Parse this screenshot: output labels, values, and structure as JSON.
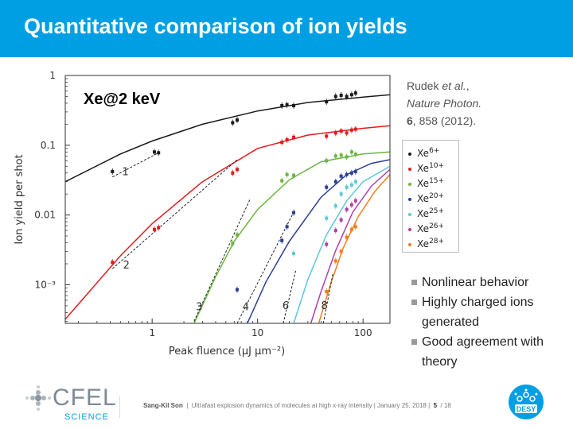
{
  "slide": {
    "title": "Quantitative comparison of ion yields"
  },
  "reference": {
    "line1_author": "Rudek ",
    "line1_etal": "et al.",
    "line1_end": ",",
    "line2": "Nature Photon.",
    "line3_volume": "6",
    "line3_rest": ", 858 (2012)."
  },
  "bullets": [
    "Nonlinear behavior",
    "Highly charged ions generated",
    "Good agreement with theory"
  ],
  "footer": {
    "author": "Sang-Kil Son",
    "talk": "Ultrafast explosion dynamics of molecules at high x-ray intensity",
    "date": "January 25, 2018",
    "page": "5",
    "total": "/ 18"
  },
  "logos": {
    "cfel": "CFEL",
    "cfel_sub": "SCIENCE",
    "desy": "DESY"
  },
  "chart_data": {
    "type": "scatter",
    "title": "",
    "panel_label": "Xe@2 keV",
    "xlabel": "Peak fluence (μJ μm⁻²)",
    "ylabel": "Ion yield per shot",
    "xscale": "log",
    "yscale": "log",
    "xlim": [
      0.15,
      180
    ],
    "ylim": [
      0.00028,
      1
    ],
    "x_ticks": [
      {
        "value": 1,
        "label": "1"
      },
      {
        "value": 10,
        "label": "10"
      },
      {
        "value": 100,
        "label": "100"
      }
    ],
    "y_ticks": [
      {
        "value": 1,
        "label": "1"
      },
      {
        "value": 0.1,
        "label": "0.1"
      },
      {
        "value": 0.01,
        "label": "0.01"
      },
      {
        "value": 0.001,
        "label": "10⁻³"
      }
    ],
    "grid": false,
    "legend_position": "right, outside plot",
    "series": [
      {
        "name": "Xe6+",
        "charge": "6+",
        "color": "#1a1a1a",
        "points": [
          [
            0.42,
            0.042
          ],
          [
            1.05,
            0.08
          ],
          [
            1.15,
            0.078
          ],
          [
            5.8,
            0.21
          ],
          [
            6.4,
            0.23
          ],
          [
            17,
            0.37
          ],
          [
            19,
            0.38
          ],
          [
            22,
            0.37
          ],
          [
            45,
            0.42
          ],
          [
            55,
            0.5
          ],
          [
            62,
            0.52
          ],
          [
            70,
            0.5
          ],
          [
            78,
            0.53
          ],
          [
            85,
            0.56
          ]
        ],
        "theory": [
          [
            0.15,
            0.03
          ],
          [
            0.5,
            0.075
          ],
          [
            1,
            0.115
          ],
          [
            3,
            0.2
          ],
          [
            10,
            0.31
          ],
          [
            30,
            0.41
          ],
          [
            100,
            0.49
          ],
          [
            180,
            0.53
          ]
        ]
      },
      {
        "name": "Xe10+",
        "charge": "10+",
        "color": "#e31a1c",
        "points": [
          [
            0.42,
            0.0021
          ],
          [
            1.05,
            0.0062
          ],
          [
            1.15,
            0.0066
          ],
          [
            5.8,
            0.04
          ],
          [
            6.4,
            0.045
          ],
          [
            17,
            0.11
          ],
          [
            19,
            0.12
          ],
          [
            22,
            0.13
          ],
          [
            45,
            0.135
          ],
          [
            55,
            0.15
          ],
          [
            62,
            0.16
          ],
          [
            70,
            0.15
          ],
          [
            78,
            0.165
          ],
          [
            85,
            0.17
          ]
        ],
        "theory": [
          [
            0.15,
            0.00032
          ],
          [
            0.5,
            0.0026
          ],
          [
            1,
            0.0075
          ],
          [
            3,
            0.03
          ],
          [
            10,
            0.09
          ],
          [
            30,
            0.14
          ],
          [
            100,
            0.175
          ],
          [
            180,
            0.19
          ]
        ]
      },
      {
        "name": "Xe15+",
        "charge": "15+",
        "color": "#6ab63f",
        "points": [
          [
            5.8,
            0.0039
          ],
          [
            6.4,
            0.0052
          ],
          [
            17,
            0.031
          ],
          [
            19,
            0.038
          ],
          [
            22,
            0.037
          ],
          [
            45,
            0.06
          ],
          [
            55,
            0.07
          ],
          [
            62,
            0.072
          ],
          [
            70,
            0.068
          ],
          [
            78,
            0.08
          ],
          [
            85,
            0.074
          ]
        ],
        "theory": [
          [
            2.5,
            0.00028
          ],
          [
            4,
            0.0013
          ],
          [
            6,
            0.0042
          ],
          [
            10,
            0.012
          ],
          [
            20,
            0.032
          ],
          [
            40,
            0.058
          ],
          [
            100,
            0.075
          ],
          [
            180,
            0.08
          ]
        ]
      },
      {
        "name": "Xe20+",
        "charge": "20+",
        "color": "#2c3e94",
        "points": [
          [
            6.4,
            0.00085
          ],
          [
            17,
            0.0043
          ],
          [
            19,
            0.0068
          ],
          [
            22,
            0.0108
          ],
          [
            45,
            0.025
          ],
          [
            55,
            0.03
          ],
          [
            62,
            0.036
          ],
          [
            70,
            0.038
          ],
          [
            78,
            0.04
          ],
          [
            85,
            0.042
          ]
        ],
        "theory": [
          [
            8,
            0.00028
          ],
          [
            12,
            0.0011
          ],
          [
            20,
            0.0042
          ],
          [
            40,
            0.018
          ],
          [
            70,
            0.038
          ],
          [
            120,
            0.055
          ],
          [
            180,
            0.062
          ]
        ]
      },
      {
        "name": "Xe25+",
        "charge": "25+",
        "color": "#5bc8dc",
        "points": [
          [
            22,
            0.0028
          ],
          [
            45,
            0.009
          ],
          [
            55,
            0.0135
          ],
          [
            62,
            0.02
          ],
          [
            70,
            0.025
          ],
          [
            78,
            0.027
          ],
          [
            85,
            0.03
          ]
        ],
        "theory": [
          [
            22,
            0.00028
          ],
          [
            30,
            0.0012
          ],
          [
            45,
            0.0052
          ],
          [
            70,
            0.016
          ],
          [
            100,
            0.03
          ],
          [
            180,
            0.05
          ]
        ]
      },
      {
        "name": "Xe26+",
        "charge": "26+",
        "color": "#b23fa8",
        "points": [
          [
            45,
            0.0038
          ],
          [
            55,
            0.006
          ],
          [
            62,
            0.0085
          ],
          [
            70,
            0.012
          ],
          [
            78,
            0.014
          ],
          [
            85,
            0.016
          ]
        ],
        "theory": [
          [
            32,
            0.00028
          ],
          [
            40,
            0.0008
          ],
          [
            55,
            0.0031
          ],
          [
            80,
            0.011
          ],
          [
            120,
            0.026
          ],
          [
            180,
            0.045
          ]
        ]
      },
      {
        "name": "Xe28+",
        "charge": "28+",
        "color": "#f07d1e",
        "points": [
          [
            45,
            0.0008
          ],
          [
            55,
            0.0022
          ],
          [
            62,
            0.003
          ],
          [
            70,
            0.0048
          ],
          [
            78,
            0.0062
          ],
          [
            85,
            0.0068
          ]
        ],
        "theory": [
          [
            38,
            0.00028
          ],
          [
            50,
            0.0011
          ],
          [
            65,
            0.0034
          ],
          [
            90,
            0.0095
          ],
          [
            130,
            0.022
          ],
          [
            180,
            0.038
          ]
        ]
      }
    ],
    "slope_guides": [
      {
        "label": "1",
        "from": [
          0.42,
          0.035
        ],
        "to": [
          1.15,
          0.078
        ],
        "label_at": [
          0.52,
          0.037
        ]
      },
      {
        "label": "2",
        "from": [
          0.42,
          0.0017
        ],
        "to": [
          6.4,
          0.062
        ],
        "label_at": [
          0.53,
          0.0017
        ]
      },
      {
        "label": "3",
        "from": [
          2.5,
          0.0003
        ],
        "to": [
          8.5,
          0.017
        ],
        "label_at": [
          2.6,
          0.00043
        ]
      },
      {
        "label": "4",
        "from": [
          6.4,
          0.00028
        ],
        "to": [
          22,
          0.011
        ],
        "label_at": [
          7.2,
          0.00043
        ]
      },
      {
        "label": "6",
        "from": [
          17.5,
          0.00028
        ],
        "to": [
          23,
          0.0016
        ],
        "label_at": [
          17.2,
          0.00045
        ]
      },
      {
        "label": "8",
        "from": [
          42,
          0.00028
        ],
        "to": [
          52,
          0.0015
        ],
        "label_at": [
          40,
          0.00045
        ]
      }
    ]
  }
}
